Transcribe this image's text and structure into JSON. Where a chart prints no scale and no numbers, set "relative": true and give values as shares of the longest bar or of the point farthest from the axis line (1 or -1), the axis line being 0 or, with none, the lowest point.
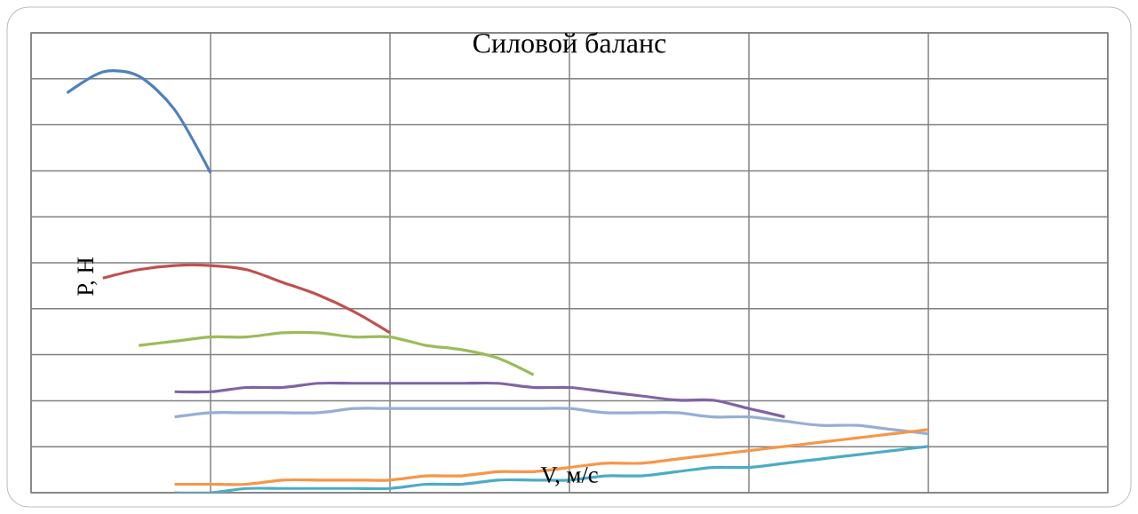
{
  "chart_data": {
    "type": "line",
    "title": "Силовой баланс",
    "xlabel": "V, м/с",
    "ylabel": "P, Н",
    "relative": true,
    "grid": true,
    "categories": [
      null,
      null,
      null,
      null,
      null,
      null,
      null,
      null,
      null,
      null,
      null,
      null,
      null,
      null,
      null,
      null,
      null,
      null,
      null,
      null,
      null,
      null,
      null,
      null,
      null,
      null,
      null,
      null,
      null,
      null,
      null
    ],
    "series": [
      {
        "color": "#4f81bd",
        "values": [
          null,
          0.95,
          1.0,
          0.99,
          0.91,
          0.76,
          null,
          null,
          null,
          null,
          null,
          null,
          null,
          null,
          null,
          null,
          null,
          null,
          null,
          null,
          null,
          null,
          null,
          null,
          null,
          null,
          null,
          null,
          null,
          null,
          null
        ]
      },
      {
        "color": "#c0504d",
        "values": [
          null,
          null,
          0.51,
          0.53,
          0.54,
          0.54,
          0.53,
          0.5,
          0.47,
          0.43,
          0.38,
          null,
          null,
          null,
          null,
          null,
          null,
          null,
          null,
          null,
          null,
          null,
          null,
          null,
          null,
          null,
          null,
          null,
          null,
          null,
          null
        ]
      },
      {
        "color": "#9bbb59",
        "values": [
          null,
          null,
          null,
          0.35,
          0.36,
          0.37,
          0.37,
          0.38,
          0.38,
          0.37,
          0.37,
          0.35,
          0.34,
          0.32,
          0.28,
          null,
          null,
          null,
          null,
          null,
          null,
          null,
          null,
          null,
          null,
          null,
          null,
          null,
          null,
          null,
          null
        ]
      },
      {
        "color": "#8064a2",
        "values": [
          null,
          null,
          null,
          null,
          0.24,
          0.24,
          0.25,
          0.25,
          0.26,
          0.26,
          0.26,
          0.26,
          0.26,
          0.26,
          0.25,
          0.25,
          0.24,
          0.23,
          0.22,
          0.22,
          0.2,
          0.18,
          null,
          null,
          null,
          null,
          null,
          null,
          null,
          null,
          null
        ]
      },
      {
        "color": "#95aed6",
        "values": [
          null,
          null,
          null,
          null,
          0.18,
          0.19,
          0.19,
          0.19,
          0.19,
          0.2,
          0.2,
          0.2,
          0.2,
          0.2,
          0.2,
          0.2,
          0.19,
          0.19,
          0.19,
          0.18,
          0.18,
          0.17,
          0.16,
          0.16,
          0.15,
          0.14,
          null,
          null,
          null,
          null,
          null
        ]
      },
      {
        "color": "#f79646",
        "values": [
          null,
          null,
          null,
          null,
          0.02,
          0.02,
          0.02,
          0.03,
          0.03,
          0.03,
          0.03,
          0.04,
          0.04,
          0.05,
          0.05,
          0.06,
          0.07,
          0.07,
          0.08,
          0.09,
          0.1,
          0.11,
          0.12,
          0.13,
          0.14,
          0.15,
          null,
          null,
          null,
          null,
          null
        ]
      },
      {
        "color": "#4bacc6",
        "values": [
          null,
          null,
          null,
          null,
          0.0,
          0.0,
          0.01,
          0.01,
          0.01,
          0.01,
          0.01,
          0.02,
          0.02,
          0.03,
          0.03,
          0.03,
          0.04,
          0.04,
          0.05,
          0.06,
          0.06,
          0.07,
          0.08,
          0.09,
          0.1,
          0.11,
          null,
          null,
          null,
          null,
          null
        ]
      }
    ]
  }
}
